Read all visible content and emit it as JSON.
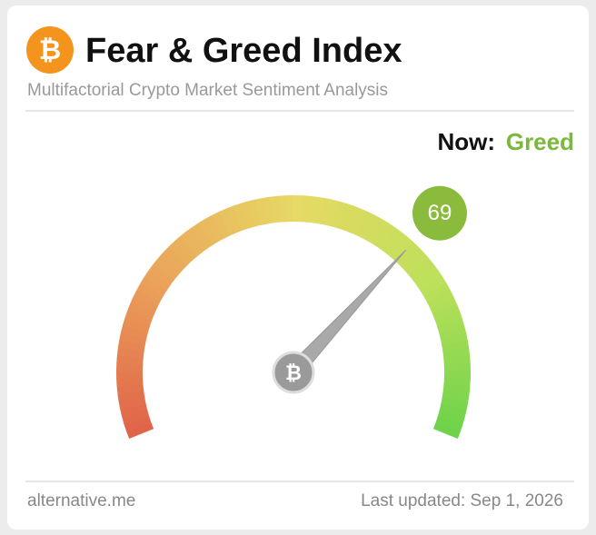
{
  "chart_data": {
    "type": "gauge",
    "title": "Fear & Greed Index",
    "subtitle": "Multifactorial Crypto Market Sentiment Analysis",
    "now_label": "Now:",
    "classification": "Greed",
    "classification_color": "#7cb83a",
    "value": 69,
    "value_color": "#8bbb3c",
    "ylim": [
      0,
      100
    ],
    "source": "alternative.me",
    "updated": "Last updated: Sep 1, 2026"
  }
}
